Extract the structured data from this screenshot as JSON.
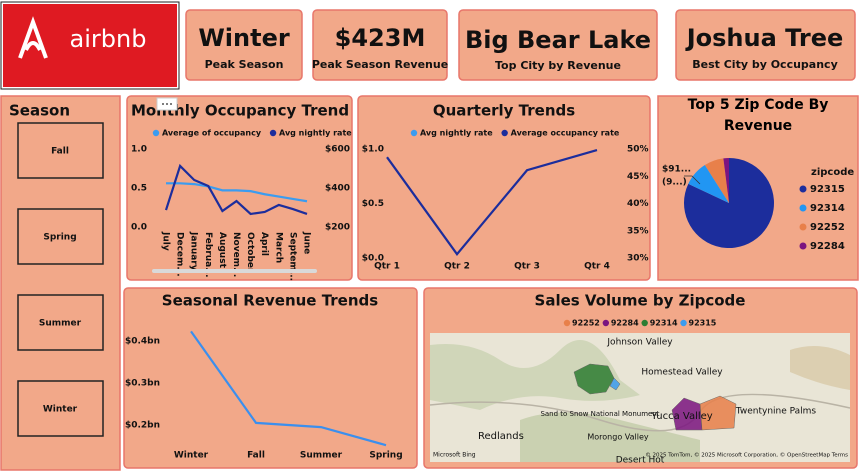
{
  "logo": "airbnb",
  "cards": [
    {
      "value": "Winter",
      "label": "Peak Season"
    },
    {
      "value": "$423M",
      "label": "Peak Season Revenue"
    },
    {
      "value": "Big Bear Lake",
      "label": "Top City by Revenue"
    },
    {
      "value": "Joshua Tree",
      "label": "Best City by Occupancy"
    }
  ],
  "slicer": {
    "title": "Season",
    "items": [
      "Fall",
      "Spring",
      "Summer",
      "Winter"
    ]
  },
  "chart_data": [
    {
      "type": "line",
      "title": "Monthly Occupancy Trend",
      "categories": [
        "July",
        "Decem...",
        "January",
        "Februa...",
        "August",
        "Novem...",
        "October",
        "April",
        "March",
        "Septem...",
        "June"
      ],
      "series": [
        {
          "name": "Average of occupancy",
          "color": "#3b9cf0",
          "values": [
            0.56,
            0.56,
            0.55,
            0.52,
            0.47,
            0.47,
            0.46,
            0.42,
            0.39,
            0.36,
            0.33
          ]
        },
        {
          "name": "Avg nightly rate",
          "color": "#1c2d9c",
          "axis": "y2",
          "values": [
            287,
            513,
            441,
            410,
            282,
            333,
            267,
            277,
            313,
            292,
            267
          ]
        }
      ],
      "ylim": [
        0,
        1
      ],
      "yticks": [
        {
          "value": 0,
          "label": "0.0"
        },
        {
          "value": 0.5,
          "label": "0.5"
        },
        {
          "value": 1,
          "label": "1.0"
        }
      ],
      "y2lim": [
        200,
        600
      ],
      "y2ticks": [
        {
          "value": 200,
          "label": "$200"
        },
        {
          "value": 400,
          "label": "$400"
        },
        {
          "value": 600,
          "label": "$600"
        }
      ]
    },
    {
      "type": "line",
      "title": "Quarterly Trends",
      "categories": [
        "Qtr 1",
        "Qtr 2",
        "Qtr 3",
        "Qtr 4"
      ],
      "series": [
        {
          "name": "Avg nightly rate",
          "color": "#3b9cf0",
          "values": [
            null,
            null,
            null,
            null
          ]
        },
        {
          "name": "Average occupancy rate",
          "color": "#1c2d9c",
          "axis": "y2",
          "values": [
            48.5,
            30.7,
            46.1,
            49.8
          ]
        }
      ],
      "ylim": [
        0,
        1
      ],
      "yticks": [
        {
          "value": 0,
          "label": "$0.0"
        },
        {
          "value": 0.5,
          "label": "$0.5"
        },
        {
          "value": 1,
          "label": "$1.0"
        }
      ],
      "y2lim": [
        30,
        50
      ],
      "y2ticks": [
        {
          "value": 30,
          "label": "30%"
        },
        {
          "value": 35,
          "label": "35%"
        },
        {
          "value": 40,
          "label": "40%"
        },
        {
          "value": 45,
          "label": "45%"
        },
        {
          "value": 50,
          "label": "50%"
        }
      ]
    },
    {
      "type": "pie",
      "title": "Top 5 Zip Code By Revenue",
      "legend_title": "zipcode",
      "categories": [
        "92315",
        "92314",
        "92252",
        "92284"
      ],
      "values": [
        82,
        9,
        7,
        2
      ],
      "colors": [
        "#1c2d9c",
        "#2196f3",
        "#e8804a",
        "#7b1580"
      ],
      "annotations": [
        "$91...",
        "(9...)"
      ]
    },
    {
      "type": "line",
      "title": "Seasonal Revenue Trends",
      "categories": [
        "Winter",
        "Fall",
        "Summer",
        "Spring"
      ],
      "values": [
        0.423,
        0.205,
        0.195,
        0.152
      ],
      "color": "#3b8fee",
      "ylim": [
        0.15,
        0.45
      ],
      "yticks": [
        {
          "value": 0.2,
          "label": "$0.2bn"
        },
        {
          "value": 0.3,
          "label": "$0.3bn"
        },
        {
          "value": 0.4,
          "label": "$0.4bn"
        }
      ]
    },
    {
      "type": "map",
      "title": "Sales Volume by Zipcode",
      "legend": [
        {
          "name": "92252",
          "color": "#e8804a"
        },
        {
          "name": "92284",
          "color": "#7b1580"
        },
        {
          "name": "92314",
          "color": "#2e7d32"
        },
        {
          "name": "92315",
          "color": "#3b9cf0"
        }
      ],
      "places": [
        "Johnson Valley",
        "Homestead Valley",
        "Sand to Snow National Monument",
        "Yucca Valley",
        "Twentynine Palms",
        "Redlands",
        "Morongo Valley",
        "Desert Hot"
      ],
      "attribution": "© 2025 TomTom, © 2025 Microsoft Corporation, © OpenStreetMap  Terms",
      "provider": "Microsoft Bing"
    }
  ]
}
